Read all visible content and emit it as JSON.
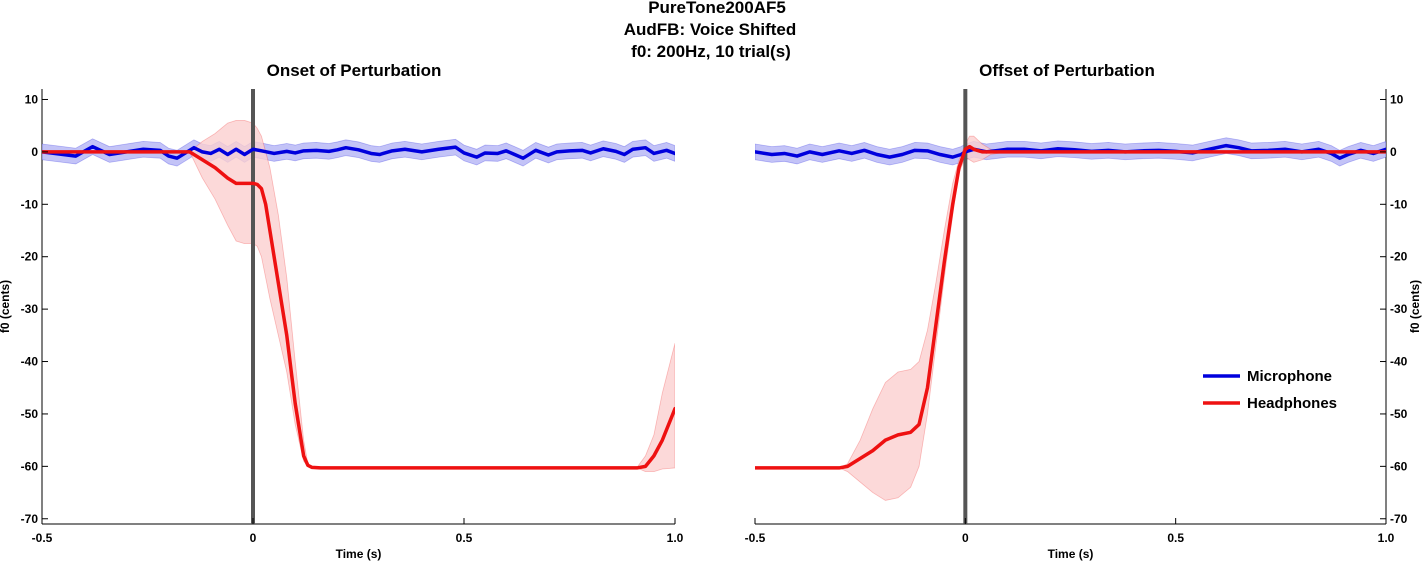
{
  "figure": {
    "title_lines": [
      "PureTone200AF5",
      "AudFB: Voice Shifted",
      "f0: 200Hz, 10 trial(s)"
    ]
  },
  "colors": {
    "microphone": "#0000dd",
    "microphone_band": "#b4b4f5",
    "headphones": "#ee1111",
    "headphones_band": "#fbcfcf",
    "event_line": "#555555"
  },
  "legend": {
    "position": "right-middle of right panel",
    "entries": [
      {
        "label": "Microphone",
        "color_key": "microphone"
      },
      {
        "label": "Headphones",
        "color_key": "headphones"
      }
    ]
  },
  "chart_data": [
    {
      "type": "line",
      "title": "Onset of Perturbation",
      "xlabel": "Time (s)",
      "ylabel": "f0 (cents)",
      "ylabel_side": "left",
      "xlim": [
        -0.5,
        1.0
      ],
      "ylim": [
        -71,
        12
      ],
      "xticks": [
        -0.5,
        0,
        0.5,
        1.0
      ],
      "xtick_labels": [
        "-0.5",
        "0",
        "0.5",
        "1.0"
      ],
      "yticks": [
        10,
        0,
        -10,
        -20,
        -30,
        -40,
        -50,
        -60,
        -70
      ],
      "ytick_labels": [
        "10",
        "0",
        "-10",
        "-20",
        "-30",
        "-40",
        "-50",
        "-60",
        "-70"
      ],
      "grid": false,
      "event_line_x": 0,
      "series": [
        {
          "name": "Microphone",
          "color_key": "microphone",
          "x": [
            -0.5,
            -0.45,
            -0.42,
            -0.38,
            -0.34,
            -0.3,
            -0.26,
            -0.22,
            -0.2,
            -0.18,
            -0.15,
            -0.14,
            -0.12,
            -0.1,
            -0.08,
            -0.06,
            -0.04,
            -0.02,
            0.0,
            0.02,
            0.05,
            0.08,
            0.1,
            0.12,
            0.15,
            0.18,
            0.2,
            0.22,
            0.25,
            0.28,
            0.3,
            0.33,
            0.36,
            0.4,
            0.44,
            0.48,
            0.5,
            0.53,
            0.55,
            0.58,
            0.6,
            0.62,
            0.64,
            0.67,
            0.7,
            0.72,
            0.75,
            0.78,
            0.8,
            0.83,
            0.86,
            0.88,
            0.9,
            0.93,
            0.95,
            0.98,
            1.0
          ],
          "y": [
            0,
            -0.5,
            -0.8,
            1.0,
            -0.5,
            0,
            0.5,
            0.3,
            -0.8,
            -1.2,
            0.3,
            0.8,
            0,
            -0.3,
            0.5,
            -0.5,
            0.5,
            -0.5,
            0.5,
            0.2,
            -0.3,
            0.1,
            -0.2,
            0.2,
            0.3,
            0.1,
            0.4,
            0.8,
            0.4,
            -0.3,
            -0.5,
            0.2,
            0.5,
            0,
            0.5,
            0.9,
            -0.2,
            -1.0,
            -0.2,
            -0.3,
            0.2,
            -0.5,
            -1.2,
            0.3,
            -0.6,
            0,
            0.2,
            0.3,
            -0.2,
            0.6,
            0.1,
            -0.5,
            0.5,
            0.8,
            -0.3,
            0.3,
            -0.3
          ],
          "band_halfwidth": 1.5
        },
        {
          "name": "Headphones",
          "color_key": "headphones",
          "x": [
            -0.5,
            -0.2,
            -0.15,
            -0.12,
            -0.09,
            -0.06,
            -0.04,
            -0.02,
            0.0,
            0.01,
            0.02,
            0.03,
            0.04,
            0.06,
            0.08,
            0.1,
            0.12,
            0.13,
            0.14,
            0.16,
            0.2,
            0.5,
            0.8,
            0.91,
            0.93,
            0.95,
            0.97,
            1.0
          ],
          "y": [
            0,
            0,
            0,
            -1.5,
            -3,
            -5,
            -6,
            -6,
            -6,
            -6.2,
            -7,
            -10,
            -15,
            -25,
            -35,
            -48,
            -58,
            -59.8,
            -60.2,
            -60.3,
            -60.3,
            -60.3,
            -60.3,
            -60.3,
            -60,
            -58,
            -55,
            -49
          ],
          "lower": [
            0,
            0,
            0,
            -5,
            -9,
            -14,
            -17,
            -17.5,
            -17.5,
            -18,
            -20,
            -24,
            -28,
            -35,
            -42,
            -52,
            -59,
            -60,
            -60.3,
            -60.3,
            -60.3,
            -60.3,
            -60.3,
            -60.3,
            -61,
            -61,
            -60.5,
            -60.3
          ],
          "upper": [
            0,
            0,
            0,
            2,
            3.5,
            5.5,
            6,
            6,
            5.5,
            4.5,
            3,
            0,
            -3,
            -12,
            -24,
            -40,
            -55,
            -59.5,
            -60.2,
            -60.3,
            -60.3,
            -60.3,
            -60.3,
            -60.2,
            -58,
            -54,
            -46,
            -36.5
          ]
        }
      ]
    },
    {
      "type": "line",
      "title": "Offset of Perturbation",
      "xlabel": "Time (s)",
      "ylabel": "f0 (cents)",
      "ylabel_side": "right",
      "xlim": [
        -0.5,
        1.0
      ],
      "ylim": [
        -71,
        12
      ],
      "xticks": [
        -0.5,
        0,
        0.5,
        1.0
      ],
      "xtick_labels": [
        "-0.5",
        "0",
        "0.5",
        "1.0"
      ],
      "yticks": [
        10,
        0,
        -10,
        -20,
        -30,
        -40,
        -50,
        -60,
        -70
      ],
      "ytick_labels": [
        "10",
        "0",
        "-10",
        "-20",
        "-30",
        "-40",
        "-50",
        "-60",
        "-70"
      ],
      "grid": false,
      "event_line_x": 0,
      "series": [
        {
          "name": "Microphone",
          "color_key": "microphone",
          "x": [
            -0.5,
            -0.46,
            -0.43,
            -0.4,
            -0.37,
            -0.34,
            -0.3,
            -0.27,
            -0.24,
            -0.21,
            -0.18,
            -0.15,
            -0.12,
            -0.09,
            -0.06,
            -0.03,
            -0.01,
            0.0,
            0.02,
            0.05,
            0.08,
            0.1,
            0.14,
            0.18,
            0.22,
            0.26,
            0.3,
            0.34,
            0.38,
            0.42,
            0.46,
            0.5,
            0.54,
            0.58,
            0.62,
            0.65,
            0.68,
            0.72,
            0.76,
            0.8,
            0.84,
            0.87,
            0.89,
            0.91,
            0.94,
            0.97,
            1.0
          ],
          "y": [
            0,
            -0.5,
            -0.3,
            -0.8,
            0,
            -0.5,
            0.2,
            -0.3,
            0.3,
            -0.5,
            -1.0,
            -0.5,
            0.3,
            0.2,
            -0.5,
            -1.0,
            -0.5,
            0,
            0.5,
            0,
            0.3,
            0.5,
            0.5,
            0.2,
            0.6,
            0.4,
            0.1,
            0.3,
            0,
            0.2,
            0.3,
            0.1,
            -0.2,
            0.5,
            1.2,
            0.8,
            0.2,
            0.3,
            0.5,
            0,
            0.5,
            -0.3,
            -1.2,
            -0.5,
            0.3,
            -0.3,
            0.5
          ],
          "band_halfwidth": 1.5
        },
        {
          "name": "Headphones",
          "color_key": "headphones",
          "x": [
            -0.5,
            -0.3,
            -0.28,
            -0.25,
            -0.22,
            -0.19,
            -0.16,
            -0.13,
            -0.11,
            -0.09,
            -0.07,
            -0.05,
            -0.03,
            -0.015,
            0.0,
            0.01,
            0.02,
            0.04,
            0.06,
            0.1,
            0.3,
            0.6,
            1.0
          ],
          "y": [
            -60.3,
            -60.3,
            -60,
            -58.5,
            -57,
            -55,
            -54,
            -53.5,
            -52,
            -45,
            -33,
            -21,
            -10,
            -3,
            0.5,
            1,
            0.5,
            0,
            0,
            0,
            0,
            0,
            0
          ],
          "lower": [
            -60.3,
            -60.3,
            -61,
            -63,
            -65,
            -66.5,
            -66,
            -64,
            -60,
            -50,
            -37,
            -24,
            -12,
            -4,
            -1,
            -1.5,
            -2,
            -1.5,
            -0.5,
            0,
            0,
            0,
            0
          ],
          "upper": [
            -60.3,
            -60.3,
            -59.5,
            -55,
            -49,
            -44,
            -42,
            -41.5,
            -40,
            -34,
            -25,
            -15,
            -6,
            -1.5,
            1.5,
            3,
            3,
            1.5,
            0.5,
            0,
            0,
            0,
            0
          ]
        }
      ]
    }
  ]
}
